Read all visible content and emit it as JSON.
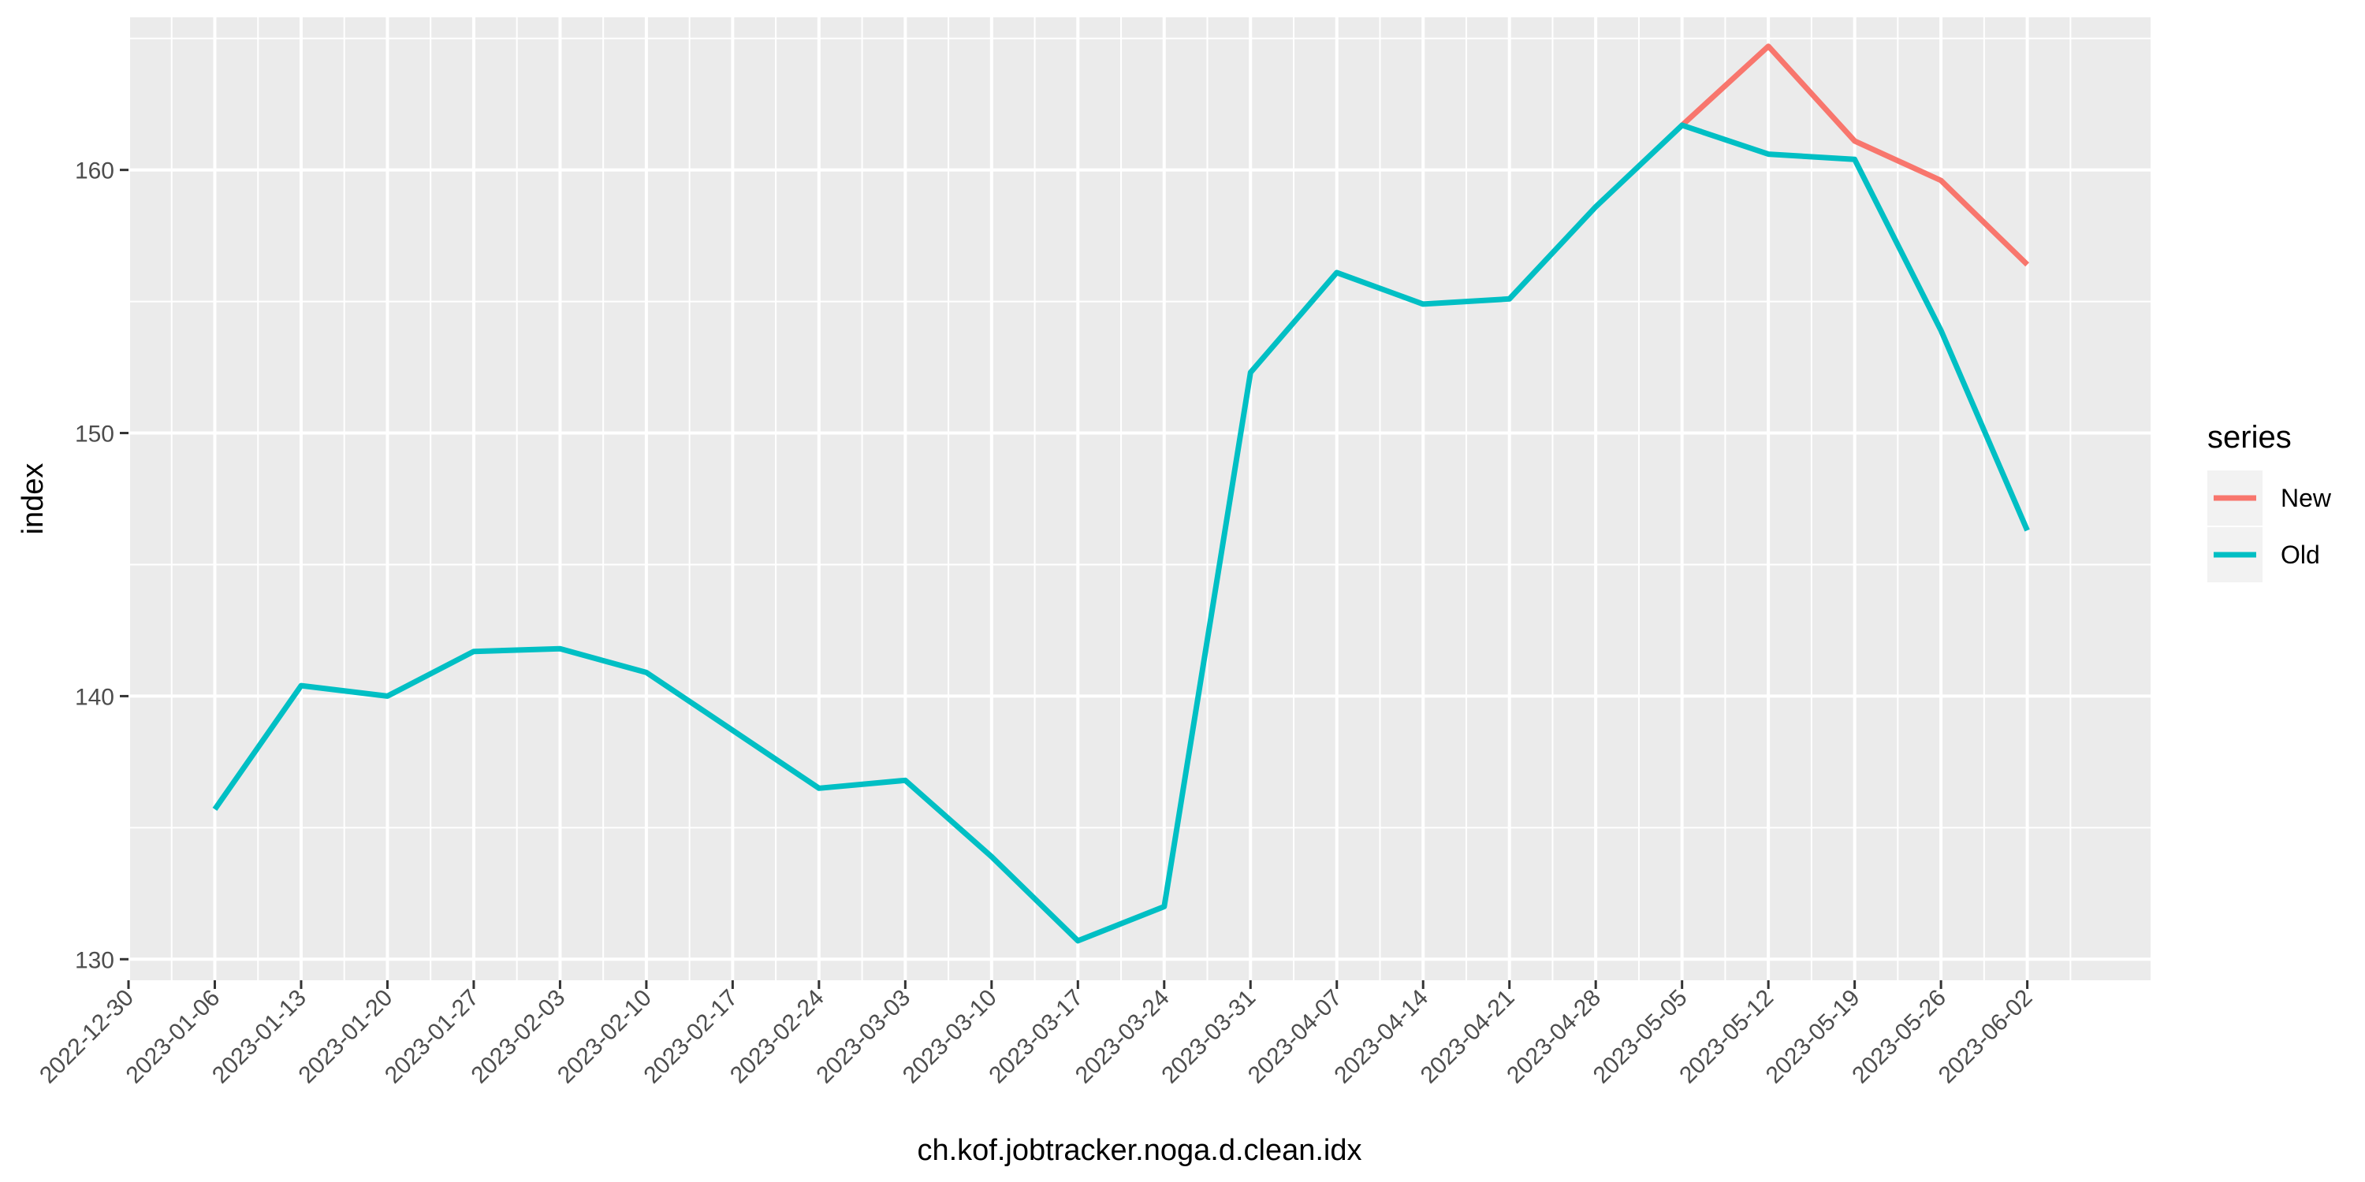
{
  "chart_data": {
    "type": "line",
    "title": "",
    "xlabel": "ch.kof.jobtracker.noga.d.clean.idx",
    "ylabel": "index",
    "x_ticks": [
      "2022-12-30",
      "2023-01-06",
      "2023-01-13",
      "2023-01-20",
      "2023-01-27",
      "2023-02-03",
      "2023-02-10",
      "2023-02-17",
      "2023-02-24",
      "2023-03-03",
      "2023-03-10",
      "2023-03-17",
      "2023-03-24",
      "2023-03-31",
      "2023-04-07",
      "2023-04-14",
      "2023-04-21",
      "2023-04-28",
      "2023-05-05",
      "2023-05-12",
      "2023-05-19",
      "2023-05-26",
      "2023-06-02"
    ],
    "xlim": [
      "2022-12-30",
      "2023-06-12"
    ],
    "y_ticks": [
      130,
      140,
      150,
      160
    ],
    "ylim": [
      129.2,
      165.8
    ],
    "grid": true,
    "legend": {
      "title": "series",
      "position": "right"
    },
    "series": [
      {
        "name": "New",
        "color": "#F8766D",
        "x": [
          "2023-05-05",
          "2023-05-12",
          "2023-05-19",
          "2023-05-26",
          "2023-06-02"
        ],
        "y": [
          161.7,
          164.7,
          161.1,
          159.6,
          156.4
        ]
      },
      {
        "name": "Old",
        "color": "#00BFC4",
        "x": [
          "2023-01-06",
          "2023-01-13",
          "2023-01-20",
          "2023-01-27",
          "2023-02-03",
          "2023-02-10",
          "2023-02-17",
          "2023-02-24",
          "2023-03-03",
          "2023-03-10",
          "2023-03-17",
          "2023-03-24",
          "2023-03-31",
          "2023-04-07",
          "2023-04-14",
          "2023-04-21",
          "2023-04-28",
          "2023-05-05",
          "2023-05-12",
          "2023-05-19",
          "2023-05-26",
          "2023-06-02"
        ],
        "y": [
          135.7,
          140.4,
          140.0,
          141.7,
          141.8,
          140.9,
          138.7,
          136.5,
          136.8,
          133.9,
          130.7,
          132.0,
          152.3,
          156.1,
          154.9,
          155.1,
          158.6,
          161.7,
          160.6,
          160.4,
          153.9,
          146.3
        ]
      }
    ]
  }
}
